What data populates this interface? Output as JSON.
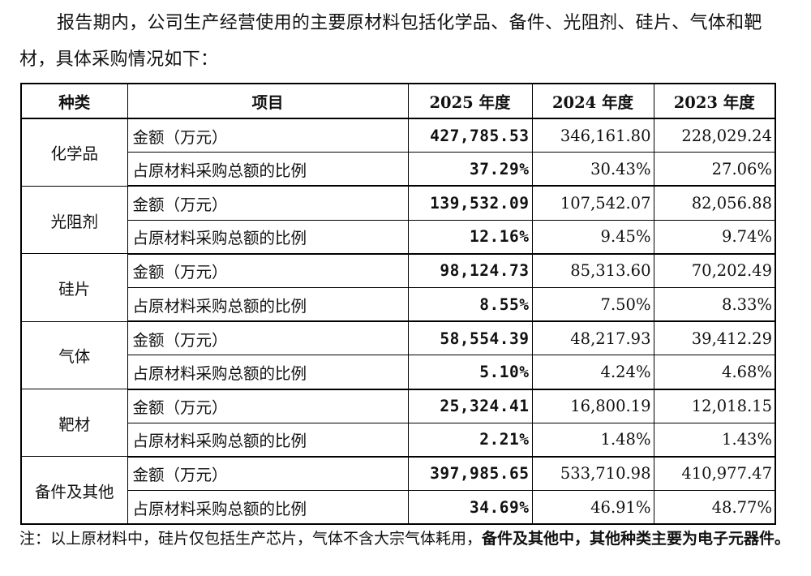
{
  "intro_text": "报告期内，公司生产经营使用的主要原材料包括化学品、备件、光阻剂、硅片、气体和靶材，具体采购情况如下：",
  "table": {
    "headers": [
      "种类",
      "项目",
      "2025 年度",
      "2024 年度",
      "2023 年度"
    ],
    "item_amount": "金额（万元）",
    "item_ratio": "占原材料采购总额的比例",
    "groups": [
      {
        "category": "化学品",
        "amount": [
          "427,785.53",
          "346,161.80",
          "228,029.24"
        ],
        "ratio": [
          "37.29%",
          "30.43%",
          "27.06%"
        ]
      },
      {
        "category": "光阻剂",
        "amount": [
          "139,532.09",
          "107,542.07",
          "82,056.88"
        ],
        "ratio": [
          "12.16%",
          "9.45%",
          "9.74%"
        ]
      },
      {
        "category": "硅片",
        "amount": [
          "98,124.73",
          "85,313.60",
          "70,202.49"
        ],
        "ratio": [
          "8.55%",
          "7.50%",
          "8.33%"
        ]
      },
      {
        "category": "气体",
        "amount": [
          "58,554.39",
          "48,217.93",
          "39,412.29"
        ],
        "ratio": [
          "5.10%",
          "4.24%",
          "4.68%"
        ]
      },
      {
        "category": "靶材",
        "amount": [
          "25,324.41",
          "16,800.19",
          "12,018.15"
        ],
        "ratio": [
          "2.21%",
          "1.48%",
          "1.43%"
        ]
      },
      {
        "category": "备件及其他",
        "amount": [
          "397,985.65",
          "533,710.98",
          "410,977.47"
        ],
        "ratio": [
          "34.69%",
          "46.91%",
          "48.77%"
        ]
      }
    ]
  },
  "note": {
    "normal": "注：以上原材料中，硅片仅包括生产芯片，气体不含大宗气体耗用，",
    "bold": "备件及其他中，其他种类主要为电子元器件。"
  }
}
